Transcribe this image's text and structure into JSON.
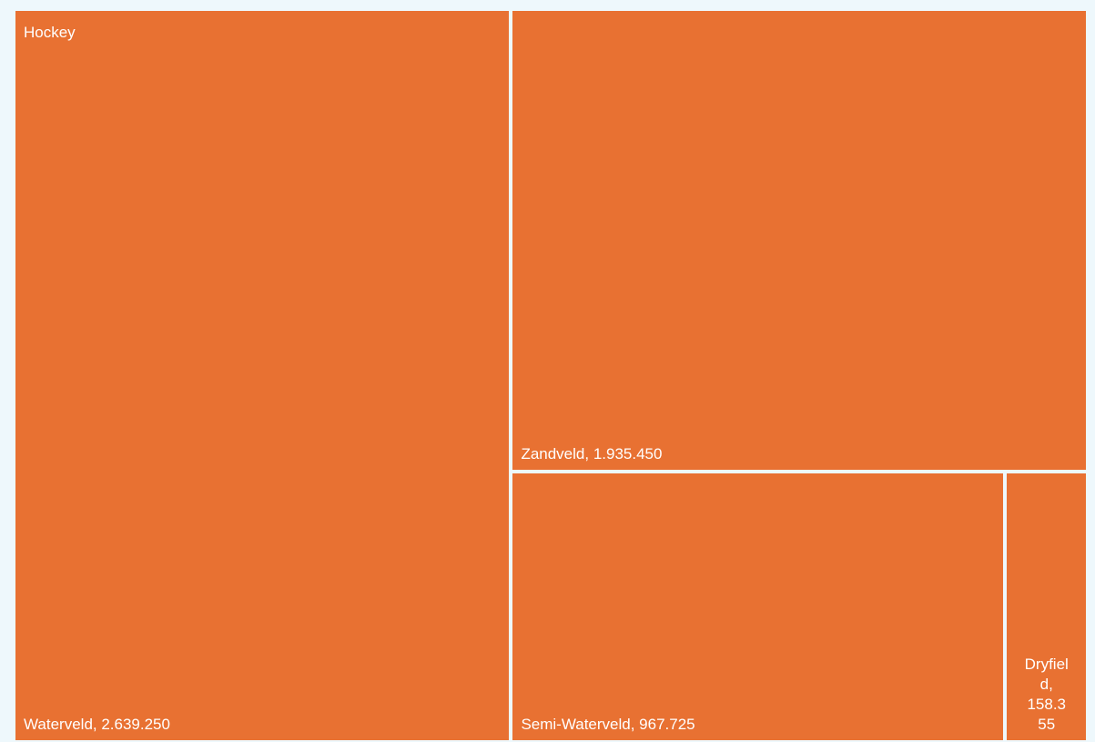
{
  "colors": {
    "background": "#eef8fc",
    "tile": "#e87132",
    "gap": "#ffffff",
    "text": "#ffffff"
  },
  "chart_data": {
    "type": "treemap",
    "parent": "Hockey",
    "items": [
      {
        "name": "Waterveld",
        "value": 2639250,
        "label": "Waterveld, 2.639.250"
      },
      {
        "name": "Zandveld",
        "value": 1935450,
        "label": "Zandveld, 1.935.450"
      },
      {
        "name": "Semi-Waterveld",
        "value": 967725,
        "label": "Semi-Waterveld, 967.725"
      },
      {
        "name": "Dryfield",
        "value": 158355,
        "label": "Dryfield, 158.355",
        "label_lines": [
          "Dryfiel",
          "d,",
          "158.3",
          "55"
        ]
      }
    ]
  }
}
